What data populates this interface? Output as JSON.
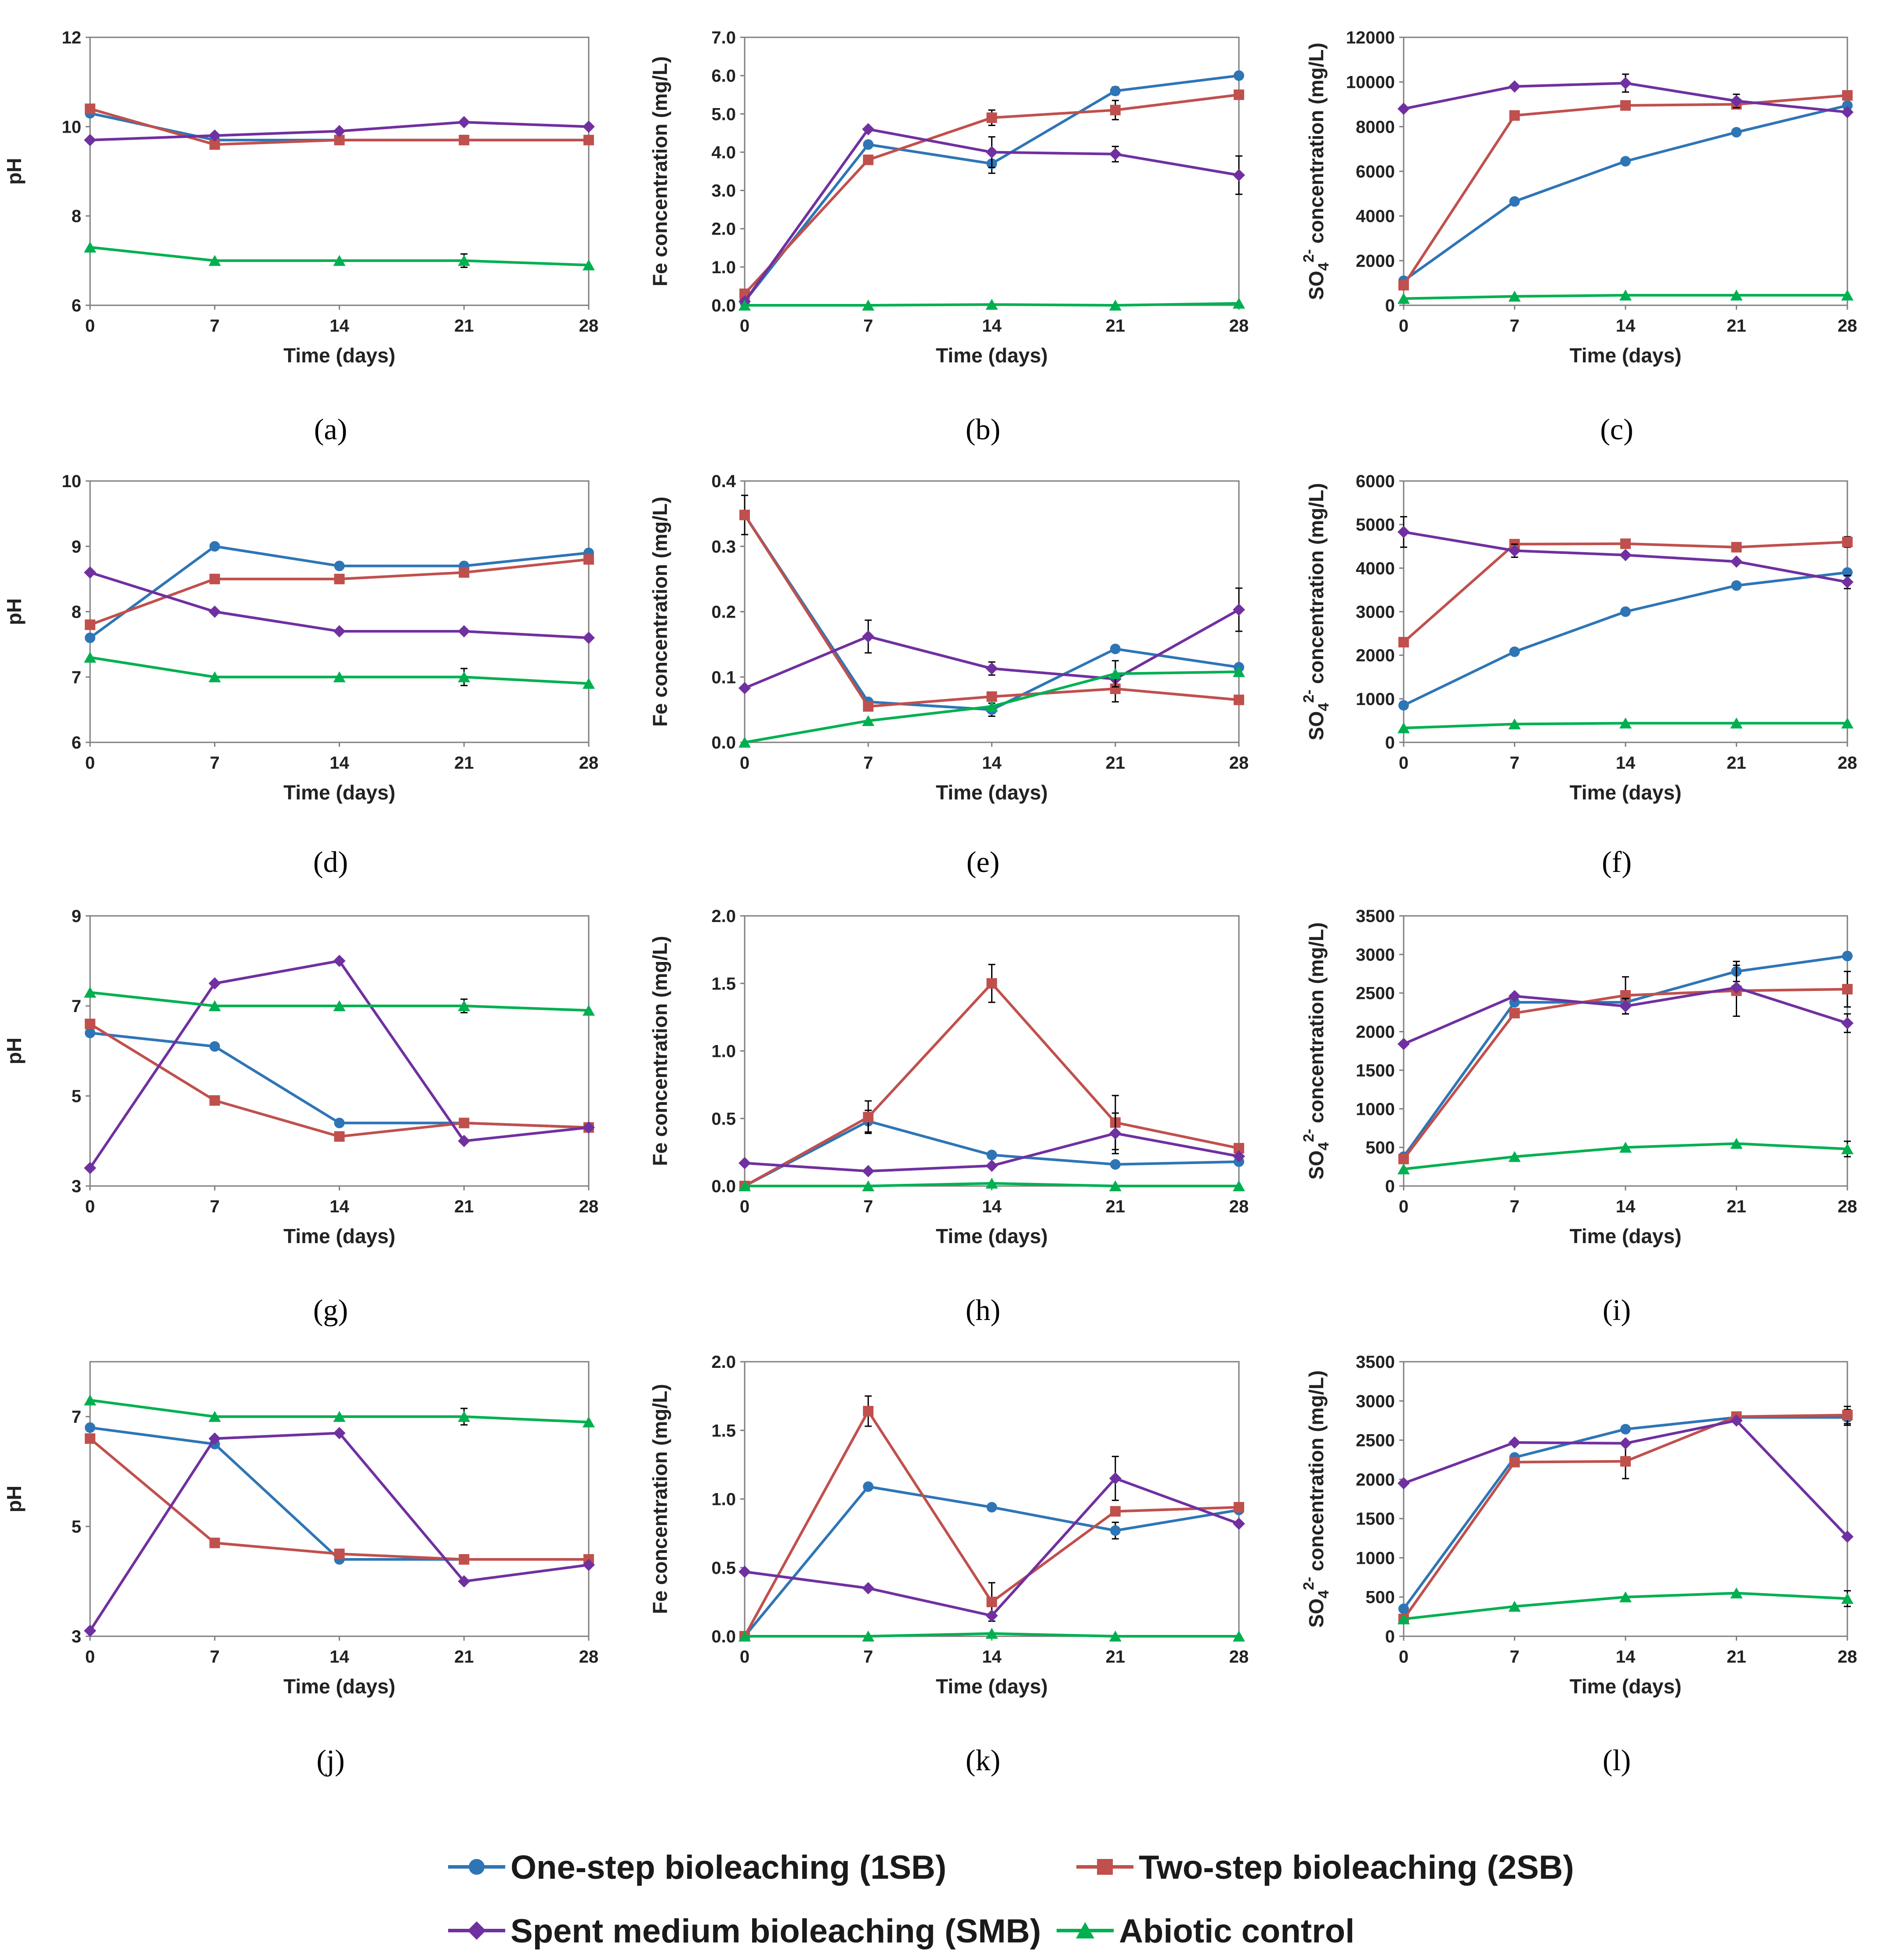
{
  "series_styles": {
    "1SB": {
      "color": "#2E75B6",
      "marker": "circle"
    },
    "2SB": {
      "color": "#C0504D",
      "marker": "square"
    },
    "SMB": {
      "color": "#7030A0",
      "marker": "diamond"
    },
    "abiotic": {
      "color": "#00B050",
      "marker": "triangle"
    }
  },
  "legend": {
    "items": [
      {
        "key": "1SB",
        "label": "One-step bioleaching (1SB)"
      },
      {
        "key": "2SB",
        "label": "Two-step bioleaching (2SB)"
      },
      {
        "key": "SMB",
        "label": "Spent medium bioleaching (SMB)"
      },
      {
        "key": "abiotic",
        "label": "Abiotic control"
      }
    ]
  },
  "chart_data": [
    {
      "id": "a",
      "caption": "(a)",
      "type": "line",
      "xlabel": "Time (days)",
      "ylabel": "pH",
      "x": [
        0,
        7,
        14,
        21,
        28
      ],
      "xticks": [
        "0",
        "7",
        "14",
        "21",
        "28"
      ],
      "ylim": [
        6,
        12
      ],
      "yticks": [
        6,
        8,
        10,
        12
      ],
      "yticklabels": [
        "6",
        "8",
        "10",
        "12"
      ],
      "series": [
        {
          "key": "1SB",
          "values": [
            10.3,
            9.7,
            9.7,
            9.7,
            9.7
          ]
        },
        {
          "key": "2SB",
          "values": [
            10.4,
            9.6,
            9.7,
            9.7,
            9.7
          ]
        },
        {
          "key": "SMB",
          "values": [
            9.7,
            9.8,
            9.9,
            10.1,
            10.0
          ]
        },
        {
          "key": "abiotic",
          "values": [
            7.3,
            7.0,
            7.0,
            7.0,
            6.9
          ],
          "errors": [
            0,
            0,
            0,
            0.15,
            0
          ]
        }
      ]
    },
    {
      "id": "b",
      "caption": "(b)",
      "type": "line",
      "xlabel": "Time (days)",
      "ylabel": "Fe concentration (mg/L)",
      "x": [
        0,
        7,
        14,
        21,
        28
      ],
      "xticks": [
        "0",
        "7",
        "14",
        "21",
        "28"
      ],
      "ylim": [
        0,
        7
      ],
      "yticks": [
        0,
        1,
        2,
        3,
        4,
        5,
        6,
        7
      ],
      "yticklabels": [
        "0.0",
        "1.0",
        "2.0",
        "3.0",
        "4.0",
        "5.0",
        "6.0",
        "7.0"
      ],
      "series": [
        {
          "key": "1SB",
          "values": [
            0.1,
            4.2,
            3.7,
            5.6,
            6.0
          ],
          "errors": [
            0,
            0,
            0.25,
            0.1,
            0
          ]
        },
        {
          "key": "2SB",
          "values": [
            0.3,
            3.8,
            4.9,
            5.1,
            5.5
          ],
          "errors": [
            0,
            0,
            0.2,
            0.25,
            0
          ]
        },
        {
          "key": "SMB",
          "values": [
            0.1,
            4.6,
            4.0,
            3.95,
            3.4
          ],
          "errors": [
            0,
            0,
            0.4,
            0.2,
            0.5
          ]
        },
        {
          "key": "abiotic",
          "values": [
            0.0,
            0.0,
            0.02,
            0.0,
            0.05
          ]
        }
      ]
    },
    {
      "id": "c",
      "caption": "(c)",
      "type": "line",
      "xlabel": "Time (days)",
      "ylabel": "SO4 2- concentration (mg/L)",
      "ylabelParts": [
        "SO",
        "4",
        "2-",
        " concentration (mg/L)"
      ],
      "x": [
        0,
        7,
        14,
        21,
        28
      ],
      "xticks": [
        "0",
        "7",
        "14",
        "21",
        "28"
      ],
      "ylim": [
        0,
        12000
      ],
      "yticks": [
        0,
        2000,
        4000,
        6000,
        8000,
        10000,
        12000
      ],
      "yticklabels": [
        "0",
        "2000",
        "4000",
        "6000",
        "8000",
        "10000",
        "12000"
      ],
      "series": [
        {
          "key": "1SB",
          "values": [
            1100,
            4650,
            6450,
            7750,
            8950
          ]
        },
        {
          "key": "2SB",
          "values": [
            900,
            8500,
            8950,
            9000,
            9400
          ]
        },
        {
          "key": "SMB",
          "values": [
            8800,
            9800,
            9950,
            9150,
            8650
          ],
          "errors": [
            0,
            0,
            400,
            300,
            0
          ]
        },
        {
          "key": "abiotic",
          "values": [
            300,
            400,
            450,
            450,
            450
          ]
        }
      ]
    },
    {
      "id": "d",
      "caption": "(d)",
      "type": "line",
      "xlabel": "Time (days)",
      "ylabel": "pH",
      "x": [
        0,
        7,
        14,
        21,
        28
      ],
      "xticks": [
        "0",
        "7",
        "14",
        "21",
        "28"
      ],
      "ylim": [
        6,
        10
      ],
      "yticks": [
        6,
        7,
        8,
        9,
        10
      ],
      "yticklabels": [
        "6",
        "7",
        "8",
        "9",
        "10"
      ],
      "series": [
        {
          "key": "1SB",
          "values": [
            7.6,
            9.0,
            8.7,
            8.7,
            8.9
          ]
        },
        {
          "key": "2SB",
          "values": [
            7.8,
            8.5,
            8.5,
            8.6,
            8.8
          ]
        },
        {
          "key": "SMB",
          "values": [
            8.6,
            8.0,
            7.7,
            7.7,
            7.6
          ]
        },
        {
          "key": "abiotic",
          "values": [
            7.3,
            7.0,
            7.0,
            7.0,
            6.9
          ],
          "errors": [
            0,
            0,
            0,
            0.13,
            0
          ]
        }
      ]
    },
    {
      "id": "e",
      "caption": "(e)",
      "type": "line",
      "xlabel": "Time (days)",
      "ylabel": "Fe concentration (mg/L)",
      "x": [
        0,
        7,
        14,
        21,
        28
      ],
      "xticks": [
        "0",
        "7",
        "14",
        "21",
        "28"
      ],
      "ylim": [
        0,
        0.4
      ],
      "yticks": [
        0,
        0.1,
        0.2,
        0.3,
        0.4
      ],
      "yticklabels": [
        "0.0",
        "0.1",
        "0.2",
        "0.3",
        "0.4"
      ],
      "series": [
        {
          "key": "1SB",
          "values": [
            0.348,
            0.062,
            0.05,
            0.143,
            0.115
          ],
          "errors": [
            0.03,
            0,
            0.01,
            0,
            0
          ]
        },
        {
          "key": "2SB",
          "values": [
            0.348,
            0.055,
            0.07,
            0.082,
            0.065
          ],
          "errors": [
            0,
            0,
            0,
            0.02,
            0
          ]
        },
        {
          "key": "SMB",
          "values": [
            0.083,
            0.162,
            0.113,
            0.097,
            0.203
          ],
          "errors": [
            0,
            0.025,
            0.01,
            0,
            0.033
          ]
        },
        {
          "key": "abiotic",
          "values": [
            0.0,
            0.033,
            0.055,
            0.105,
            0.108
          ],
          "errors": [
            0,
            0,
            0,
            0.02,
            0
          ]
        }
      ]
    },
    {
      "id": "f",
      "caption": "(f)",
      "type": "line",
      "xlabel": "Time (days)",
      "ylabel": "SO4 2- concentration (mg/L)",
      "ylabelParts": [
        "SO",
        "4",
        "2-",
        " concentration (mg/L)"
      ],
      "x": [
        0,
        7,
        14,
        21,
        28
      ],
      "xticks": [
        "0",
        "7",
        "14",
        "21",
        "28"
      ],
      "ylim": [
        0,
        6000
      ],
      "yticks": [
        0,
        1000,
        2000,
        3000,
        4000,
        5000,
        6000
      ],
      "yticklabels": [
        "0",
        "1000",
        "2000",
        "3000",
        "4000",
        "5000",
        "6000"
      ],
      "series": [
        {
          "key": "1SB",
          "values": [
            850,
            2080,
            3000,
            3600,
            3900
          ]
        },
        {
          "key": "2SB",
          "values": [
            2300,
            4550,
            4560,
            4480,
            4600
          ],
          "errors": [
            0,
            0,
            0,
            0,
            120
          ]
        },
        {
          "key": "SMB",
          "values": [
            4830,
            4400,
            4300,
            4150,
            3680
          ],
          "errors": [
            350,
            150,
            0,
            0,
            150
          ]
        },
        {
          "key": "abiotic",
          "values": [
            330,
            420,
            440,
            440,
            440
          ]
        }
      ]
    },
    {
      "id": "g",
      "caption": "(g)",
      "type": "line",
      "xlabel": "Time (days)",
      "ylabel": "pH",
      "x": [
        0,
        7,
        14,
        21,
        28
      ],
      "xticks": [
        "0",
        "7",
        "14",
        "21",
        "28"
      ],
      "ylim": [
        3,
        9
      ],
      "yticks": [
        3,
        5,
        7,
        9
      ],
      "yticklabels": [
        "3",
        "5",
        "7",
        "9"
      ],
      "series": [
        {
          "key": "1SB",
          "values": [
            6.4,
            6.1,
            4.4,
            4.4,
            4.3
          ]
        },
        {
          "key": "2SB",
          "values": [
            6.6,
            4.9,
            4.1,
            4.4,
            4.3
          ]
        },
        {
          "key": "SMB",
          "values": [
            3.4,
            7.5,
            8.0,
            4.0,
            4.3
          ]
        },
        {
          "key": "abiotic",
          "values": [
            7.3,
            7.0,
            7.0,
            7.0,
            6.9
          ],
          "errors": [
            0,
            0,
            0,
            0.15,
            0
          ]
        }
      ]
    },
    {
      "id": "h",
      "caption": "(h)",
      "type": "line",
      "xlabel": "Time (days)",
      "ylabel": "Fe concentration (mg/L)",
      "x": [
        0,
        7,
        14,
        21,
        28
      ],
      "xticks": [
        "0",
        "7",
        "14",
        "21",
        "28"
      ],
      "ylim": [
        0,
        2.0
      ],
      "yticks": [
        0,
        0.5,
        1.0,
        1.5,
        2.0
      ],
      "yticklabels": [
        "0.0",
        "0.5",
        "1.0",
        "1.5",
        "2.0"
      ],
      "series": [
        {
          "key": "1SB",
          "values": [
            0.0,
            0.48,
            0.23,
            0.16,
            0.18
          ],
          "errors": [
            0,
            0.08,
            0,
            0,
            0
          ]
        },
        {
          "key": "2SB",
          "values": [
            0.0,
            0.51,
            1.5,
            0.47,
            0.28
          ],
          "errors": [
            0,
            0.12,
            0.14,
            0.2,
            0
          ]
        },
        {
          "key": "SMB",
          "values": [
            0.17,
            0.11,
            0.15,
            0.39,
            0.22
          ],
          "errors": [
            0,
            0,
            0,
            0.15,
            0
          ]
        },
        {
          "key": "abiotic",
          "values": [
            0.0,
            0.0,
            0.02,
            0.0,
            0.0
          ]
        }
      ]
    },
    {
      "id": "i",
      "caption": "(i)",
      "type": "line",
      "xlabel": "Time (days)",
      "ylabel": "SO4 2- concentration (mg/L)",
      "ylabelParts": [
        "SO",
        "4",
        "2-",
        " concentration (mg/L)"
      ],
      "x": [
        0,
        7,
        14,
        21,
        28
      ],
      "xticks": [
        "0",
        "7",
        "14",
        "21",
        "28"
      ],
      "ylim": [
        0,
        3500
      ],
      "yticks": [
        0,
        500,
        1000,
        1500,
        2000,
        2500,
        3000,
        3500
      ],
      "yticklabels": [
        "0",
        "500",
        "1000",
        "1500",
        "2000",
        "2500",
        "3000",
        "3500"
      ],
      "series": [
        {
          "key": "1SB",
          "values": [
            380,
            2380,
            2380,
            2780,
            2980
          ],
          "errors": [
            0,
            0,
            0,
            130,
            0
          ]
        },
        {
          "key": "2SB",
          "values": [
            350,
            2240,
            2470,
            2530,
            2550
          ],
          "errors": [
            0,
            0,
            240,
            330,
            230
          ]
        },
        {
          "key": "SMB",
          "values": [
            1840,
            2460,
            2330,
            2570,
            2110
          ],
          "errors": [
            0,
            0,
            100,
            0,
            120
          ]
        },
        {
          "key": "abiotic",
          "values": [
            220,
            380,
            500,
            550,
            480
          ],
          "errors": [
            0,
            0,
            0,
            0,
            100
          ]
        }
      ]
    },
    {
      "id": "j",
      "caption": "(j)",
      "type": "line",
      "xlabel": "Time (days)",
      "ylabel": "pH",
      "x": [
        0,
        7,
        14,
        21,
        28
      ],
      "xticks": [
        "0",
        "7",
        "14",
        "21",
        "28"
      ],
      "ylim": [
        3,
        8
      ],
      "yticks": [
        3,
        5,
        7
      ],
      "yticklabels": [
        "3",
        "5",
        "7"
      ],
      "series": [
        {
          "key": "1SB",
          "values": [
            6.8,
            6.5,
            4.4,
            4.4,
            4.4
          ]
        },
        {
          "key": "2SB",
          "values": [
            6.6,
            4.7,
            4.5,
            4.4,
            4.4
          ]
        },
        {
          "key": "SMB",
          "values": [
            3.1,
            6.6,
            6.7,
            4.0,
            4.3
          ]
        },
        {
          "key": "abiotic",
          "values": [
            7.3,
            7.0,
            7.0,
            7.0,
            6.9
          ],
          "errors": [
            0,
            0,
            0,
            0.15,
            0
          ]
        }
      ]
    },
    {
      "id": "k",
      "caption": "(k)",
      "type": "line",
      "xlabel": "Time (days)",
      "ylabel": "Fe concentration (mg/L)",
      "x": [
        0,
        7,
        14,
        21,
        28
      ],
      "xticks": [
        "0",
        "7",
        "14",
        "21",
        "28"
      ],
      "ylim": [
        0,
        2.0
      ],
      "yticks": [
        0,
        0.5,
        1.0,
        1.5,
        2.0
      ],
      "yticklabels": [
        "0.0",
        "0.5",
        "1.0",
        "1.5",
        "2.0"
      ],
      "series": [
        {
          "key": "1SB",
          "values": [
            0.0,
            1.09,
            0.94,
            0.77,
            0.92
          ],
          "errors": [
            0,
            0,
            0,
            0.06,
            0
          ]
        },
        {
          "key": "2SB",
          "values": [
            0.0,
            1.64,
            0.25,
            0.91,
            0.94
          ],
          "errors": [
            0,
            0.11,
            0.14,
            0,
            0
          ]
        },
        {
          "key": "SMB",
          "values": [
            0.47,
            0.35,
            0.15,
            1.15,
            0.82
          ],
          "errors": [
            0,
            0,
            0,
            0.16,
            0
          ]
        },
        {
          "key": "abiotic",
          "values": [
            0.0,
            0.0,
            0.02,
            0.0,
            0.0
          ]
        }
      ]
    },
    {
      "id": "l",
      "caption": "(l)",
      "type": "line",
      "xlabel": "Time (days)",
      "ylabel": "SO4 2- concentration (mg/L)",
      "ylabelParts": [
        "SO",
        "4",
        "2-",
        " concentration (mg/L)"
      ],
      "x": [
        0,
        7,
        14,
        21,
        28
      ],
      "xticks": [
        "0",
        "7",
        "14",
        "21",
        "28"
      ],
      "ylim": [
        0,
        3500
      ],
      "yticks": [
        0,
        500,
        1000,
        1500,
        2000,
        2500,
        3000,
        3500
      ],
      "yticklabels": [
        "0",
        "500",
        "1000",
        "1500",
        "2000",
        "2500",
        "3000",
        "3500"
      ],
      "series": [
        {
          "key": "1SB",
          "values": [
            350,
            2280,
            2640,
            2790,
            2790
          ],
          "errors": [
            0,
            0,
            0,
            0,
            100
          ]
        },
        {
          "key": "2SB",
          "values": [
            220,
            2220,
            2230,
            2800,
            2820
          ],
          "errors": [
            0,
            0,
            220,
            0,
            110
          ]
        },
        {
          "key": "SMB",
          "values": [
            1950,
            2470,
            2460,
            2750,
            1270
          ]
        },
        {
          "key": "abiotic",
          "values": [
            220,
            380,
            500,
            550,
            480
          ],
          "errors": [
            0,
            0,
            0,
            0,
            100
          ]
        }
      ]
    }
  ]
}
